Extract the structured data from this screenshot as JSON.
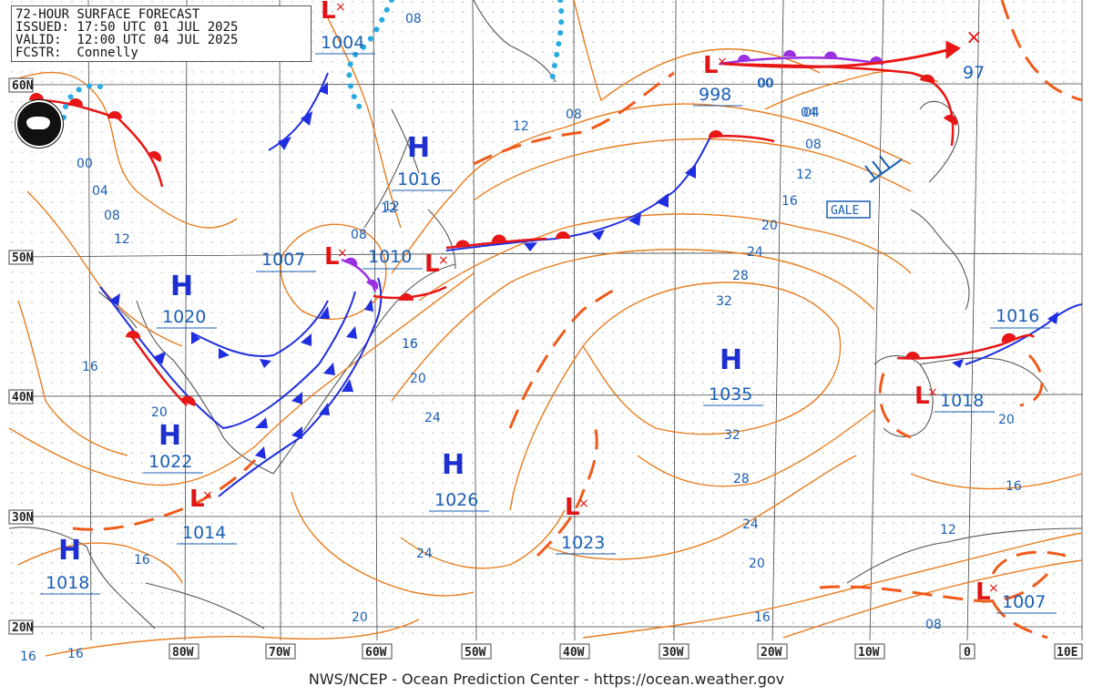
{
  "header": {
    "title": "72-HOUR SURFACE FORECAST",
    "issued": "ISSUED: 17:50 UTC 01 JUL 2025",
    "valid": "VALID:  12:00 UTC 04 JUL 2025",
    "forecaster": "FCSTR:  Connelly"
  },
  "credit": "NWS/NCEP - Ocean Prediction Center - https://ocean.weather.gov",
  "lat_labels": [
    "60N",
    "50N",
    "40N",
    "30N",
    "20N"
  ],
  "lon_labels": [
    "80W",
    "70W",
    "60W",
    "50W",
    "40W",
    "30W",
    "20W",
    "10W",
    "0",
    "10E"
  ],
  "highs": [
    {
      "label": "H",
      "pressure": "1016"
    },
    {
      "label": "H",
      "pressure": "1020"
    },
    {
      "label": "H",
      "pressure": "1022"
    },
    {
      "label": "H",
      "pressure": "1018"
    },
    {
      "label": "H",
      "pressure": "1026"
    },
    {
      "label": "H",
      "pressure": "1035"
    }
  ],
  "lows": [
    {
      "label": "L",
      "pressure": "1004"
    },
    {
      "label": "L",
      "pressure": "998"
    },
    {
      "label": "L",
      "pressure": "1007"
    },
    {
      "label": "L",
      "pressure": "1010"
    },
    {
      "label": "L",
      "pressure": "1014"
    },
    {
      "label": "L",
      "pressure": "1023"
    },
    {
      "label": "L",
      "pressure": "1018"
    },
    {
      "label": "L",
      "pressure": "1007"
    }
  ],
  "extra_pressures": [
    "1016",
    "97"
  ],
  "isobar_labels": [
    "08",
    "12",
    "00",
    "04",
    "08",
    "12",
    "16",
    "20",
    "24",
    "28",
    "32",
    "32",
    "28",
    "24",
    "20",
    "16",
    "08",
    "12",
    "16",
    "20",
    "24",
    "20",
    "16",
    "00",
    "04",
    "08",
    "12",
    "16",
    "20",
    "16",
    "16",
    "20",
    "16",
    "12",
    "08",
    "08",
    "12",
    "04",
    "00",
    "16",
    "24"
  ],
  "warnings": {
    "gale": "GALE"
  },
  "colors": {
    "isobar": "#e87d1e",
    "cold_front": "#1f2ee0",
    "warm_front": "#e81616",
    "occluded": "#9b30e0",
    "trough": "#f05a1a",
    "high": "#1d2fd1",
    "low": "#e01414",
    "pressure_text": "#1a5fb4",
    "grid": "#444444",
    "coast": "#555555"
  }
}
